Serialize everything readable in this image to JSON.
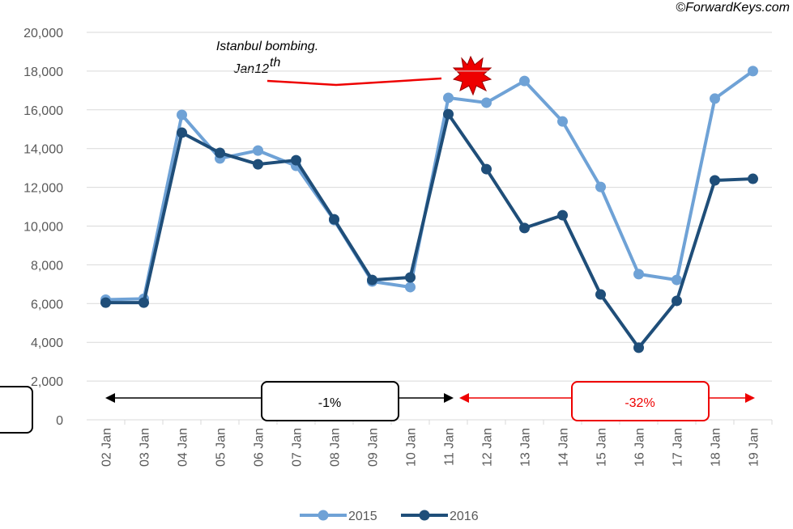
{
  "chart_data": {
    "type": "line",
    "categories": [
      "02 Jan",
      "03 Jan",
      "04 Jan",
      "05 Jan",
      "06 Jan",
      "07 Jan",
      "08 Jan",
      "09 Jan",
      "10 Jan",
      "11 Jan",
      "12 Jan",
      "13 Jan",
      "14 Jan",
      "15 Jan",
      "16 Jan",
      "17 Jan",
      "18 Jan",
      "19 Jan"
    ],
    "series": [
      {
        "name": "2015",
        "color": "#6fa2d6",
        "values": [
          6200,
          6250,
          15740,
          13490,
          13900,
          13110,
          10310,
          7140,
          6850,
          16620,
          16370,
          17490,
          15400,
          12020,
          7520,
          7220,
          16580,
          18000
        ]
      },
      {
        "name": "2016",
        "color": "#1f4e79",
        "values": [
          6050,
          6050,
          14820,
          13780,
          13190,
          13400,
          10350,
          7220,
          7350,
          15780,
          12940,
          9900,
          10560,
          6470,
          3720,
          6140,
          12360,
          12440
        ]
      }
    ],
    "ylim": [
      0,
      20000
    ],
    "yticks": [
      0,
      {
        "value": 2000,
        "label": "2,000"
      },
      {
        "value": 4000,
        "label": "4,000"
      },
      {
        "value": 6000,
        "label": "6,000"
      },
      {
        "value": 8000,
        "label": "8,000"
      },
      {
        "value": 10000,
        "label": "10,000"
      },
      {
        "value": 12000,
        "label": "12,000"
      },
      {
        "value": 14000,
        "label": "14,000"
      },
      {
        "value": 16000,
        "label": "16,000"
      },
      {
        "value": 18000,
        "label": "18,000"
      },
      {
        "value": 20000,
        "label": "20,000"
      }
    ],
    "grid": true,
    "legend": "bottom",
    "source": "©ForwardKeys.com",
    "annotation": {
      "line1": "Istanbul bombing.",
      "line2": "Jan12",
      "sup": "th"
    },
    "change_before": "-1%",
    "change_after": "-32%"
  }
}
